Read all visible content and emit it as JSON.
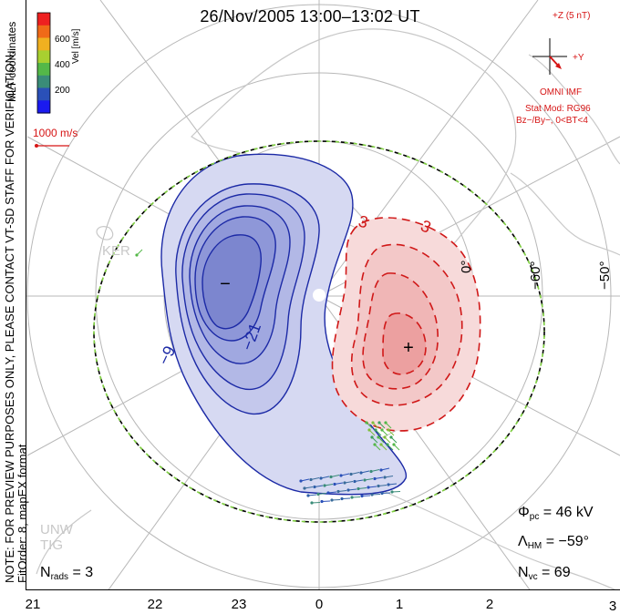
{
  "title": "26/Nov/2005 13:00–13:02 UT",
  "side_note": {
    "line1": "NOTE: FOR PREVIEW PURPOSES ONLY, PLEASE CONTACT VT-SD STAFF FOR VERIFICATION.",
    "line2": "FitOrder: 8, mapEX format"
  },
  "coordinates_label": "MLT coordinates",
  "colorbar": {
    "label": "Vel [m/s]",
    "ticks": [
      "600",
      "400",
      "200"
    ],
    "colors": [
      "#ee2020",
      "#f06a18",
      "#f0b020",
      "#a8d030",
      "#54b848",
      "#3a8c78",
      "#2a50b8",
      "#1a1af0"
    ]
  },
  "velocity_scale": {
    "label": "1000 m/s",
    "color": "#d61515"
  },
  "imf": {
    "label_z": "+Z (5 nT)",
    "label_y": "+Y",
    "source": "OMNI IMF",
    "model": "Stat Mod: RG96",
    "condition": "Bz−/By−, 0<BT<4",
    "color": "#d61515"
  },
  "stations": [
    "KER",
    "UNW",
    "TIG"
  ],
  "lat_labels": [
    "−50°",
    "−60°"
  ],
  "lon_labels": [
    "0°",
    "3"
  ],
  "contours": {
    "negative_labels": [
      "−9",
      "−21"
    ],
    "positive_labels": [
      "3",
      "3"
    ],
    "min_marker": "−",
    "max_marker": "+",
    "negative_color": "#1c2aa6",
    "positive_color": "#d01818"
  },
  "stats": {
    "phi_pc_value": "= 46 kV",
    "lambda_hm_value": "= −59°",
    "n_vc_value": "= 69",
    "n_rads_value": "= 3"
  },
  "mlt_ticks": [
    "21",
    "22",
    "23",
    "0",
    "1",
    "2",
    "3"
  ],
  "colors": {
    "boundary_green": "#7fd040",
    "coast": "#cfcfcf",
    "grid": "#b8b8b8"
  }
}
